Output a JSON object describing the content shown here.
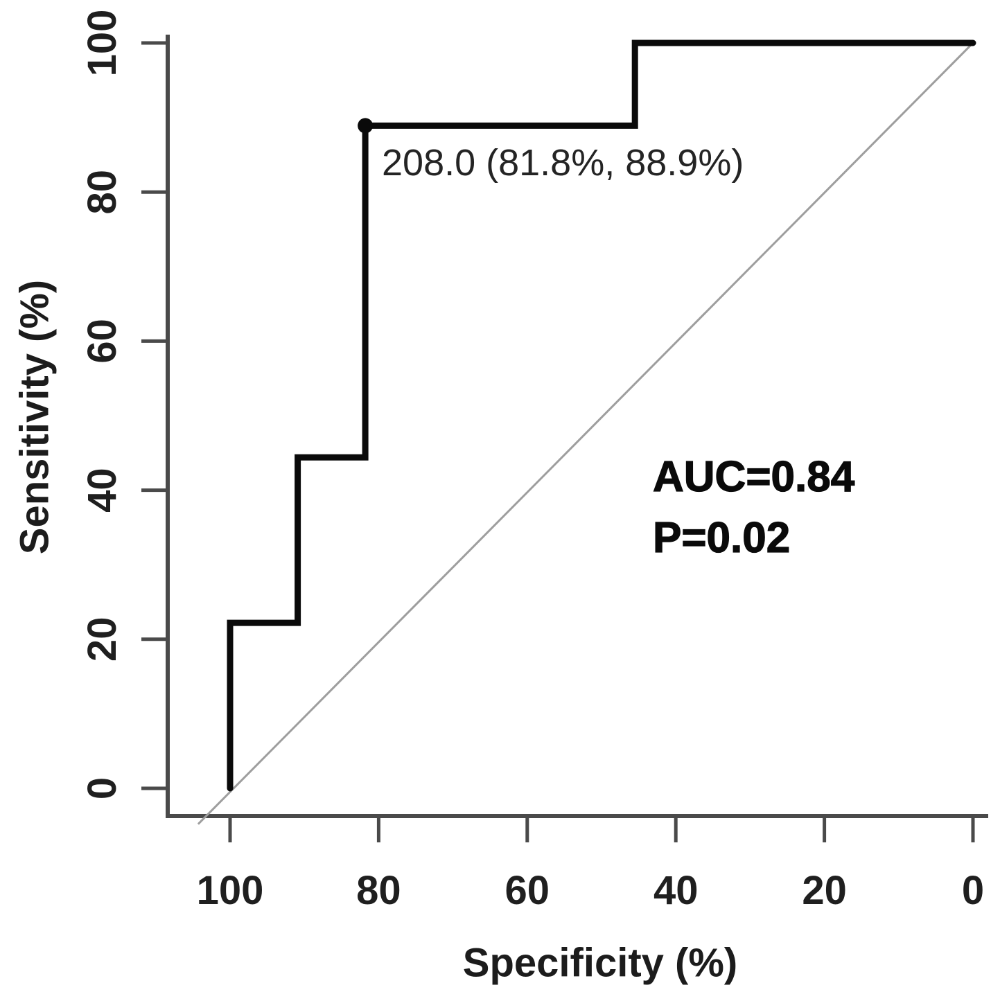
{
  "chart_data": {
    "type": "line",
    "subtype": "roc_curve",
    "title": "",
    "xlabel": "Specificity (%)",
    "ylabel": "Sensitivity (%)",
    "xlim": [
      100,
      0
    ],
    "ylim": [
      0,
      100
    ],
    "x_axis_reversed": true,
    "grid": false,
    "legend": false,
    "x_ticks": [
      100,
      80,
      60,
      40,
      20,
      0
    ],
    "y_ticks": [
      0,
      20,
      40,
      60,
      80,
      100
    ],
    "roc_points_spec_sens": [
      [
        100,
        0
      ],
      [
        100,
        22.2
      ],
      [
        90.9,
        22.2
      ],
      [
        90.9,
        44.4
      ],
      [
        81.8,
        44.4
      ],
      [
        81.8,
        88.9
      ],
      [
        45.5,
        88.9
      ],
      [
        45.5,
        100
      ],
      [
        0,
        100
      ]
    ],
    "optimal_point": {
      "cutoff": "208.0",
      "specificity": 81.8,
      "sensitivity": 88.9,
      "label": "208.0 (81.8%, 88.9%)"
    },
    "reference_line": {
      "type": "chance-diagonal",
      "from_spec_sens": [
        104.3,
        -4.8
      ],
      "to_spec_sens": [
        -0.2,
        100.2
      ]
    },
    "stats": {
      "auc_label": "AUC=0.84",
      "p_label": "P=0.02"
    },
    "colors": {
      "curve": "#0a0a0a",
      "axis": "#4a4a4a",
      "reference": "#9e9e9e",
      "text": "#1f1f1f"
    }
  }
}
